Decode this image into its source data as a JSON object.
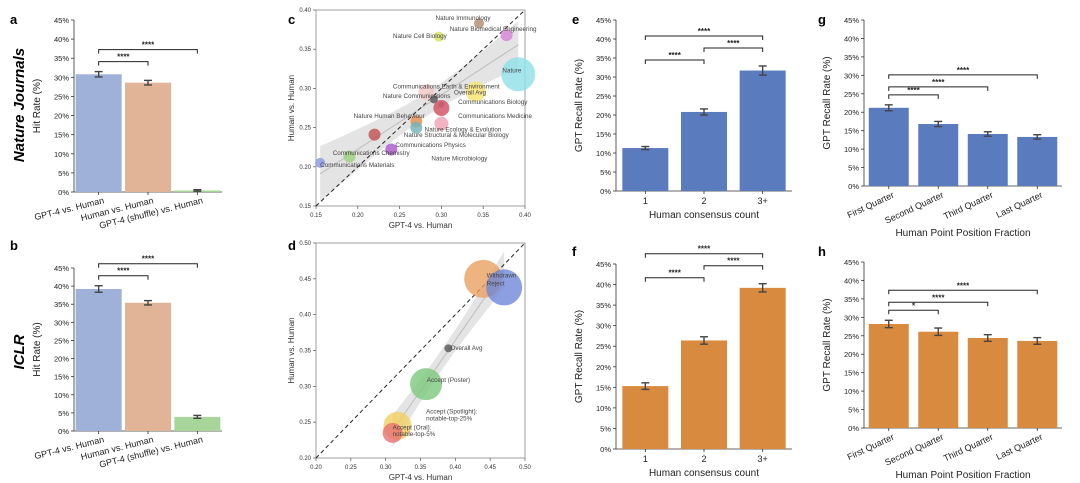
{
  "colors": {
    "blue": "#5b7bbf",
    "bar_blue_light": "#9fb1d8",
    "bar_peach": "#e2b497",
    "bar_green_light": "#a7d59a",
    "orange": "#d88b3f",
    "axis": "#333333",
    "panel_bg": "#eaeaf2",
    "err": "#444444"
  },
  "row_labels": {
    "top": "Nature Journals",
    "bottom": "ICLR"
  },
  "chart_data": [
    {
      "panel": "a",
      "type": "bar",
      "row_label": "Nature Journals",
      "ylabel": "Hit Rate (%)",
      "ylim": [
        0,
        45
      ],
      "yticks": [
        "0%",
        "5%",
        "10%",
        "15%",
        "20%",
        "25%",
        "30%",
        "35%",
        "40%",
        "45%"
      ],
      "categories": [
        "GPT-4 vs. Human",
        "Human vs. Human",
        "GPT-4 (shuffle) vs. Human"
      ],
      "values": [
        30.8,
        28.6,
        0.4
      ],
      "errors": [
        0.7,
        0.6,
        0.2
      ],
      "bar_colors": [
        "#9fb1d8",
        "#e2b497",
        "#a7d59a"
      ],
      "sig": [
        {
          "from": 0,
          "to": 1,
          "label": "****"
        },
        {
          "from": 0,
          "to": 2,
          "label": "****"
        }
      ]
    },
    {
      "panel": "b",
      "type": "bar",
      "row_label": "ICLR",
      "ylabel": "Hit Rate (%)",
      "ylim": [
        0,
        45
      ],
      "yticks": [
        "0%",
        "5%",
        "10%",
        "15%",
        "20%",
        "25%",
        "30%",
        "35%",
        "40%",
        "45%"
      ],
      "categories": [
        "GPT-4 vs. Human",
        "Human vs. Human",
        "GPT-4 (shuffle) vs. Human"
      ],
      "values": [
        39.2,
        35.4,
        3.9
      ],
      "errors": [
        0.9,
        0.6,
        0.4
      ],
      "bar_colors": [
        "#9fb1d8",
        "#e2b497",
        "#a7d59a"
      ],
      "sig": [
        {
          "from": 0,
          "to": 1,
          "label": "****"
        },
        {
          "from": 0,
          "to": 2,
          "label": "****"
        }
      ]
    },
    {
      "panel": "c",
      "type": "scatter",
      "xlabel": "GPT-4 vs. Human",
      "ylabel": "Human vs. Human",
      "xlim": [
        0.15,
        0.4
      ],
      "ylim": [
        0.15,
        0.4
      ],
      "xticks": [
        "0.15",
        "0.20",
        "0.25",
        "0.30",
        "0.35",
        "0.40"
      ],
      "yticks": [
        "0.15",
        "0.20",
        "0.25",
        "0.30",
        "0.35",
        "0.40"
      ],
      "points": [
        {
          "label": "Nature Immunology",
          "x": 0.345,
          "y": 0.383,
          "size": 5,
          "color": "#b08a6e"
        },
        {
          "label": "Nature Biomedical Engineering",
          "x": 0.378,
          "y": 0.368,
          "size": 6,
          "color": "#d782d8"
        },
        {
          "label": "Nature Cell Biology",
          "x": 0.297,
          "y": 0.366,
          "size": 5,
          "color": "#d9e35a"
        },
        {
          "label": "Nature",
          "x": 0.392,
          "y": 0.318,
          "size": 17,
          "color": "#8fe0e8"
        },
        {
          "label": "Communications Earth & Environment",
          "x": 0.282,
          "y": 0.295,
          "size": 8,
          "color": "#f2c7c7"
        },
        {
          "label": "Overall Avg",
          "x": 0.341,
          "y": 0.296,
          "size": 10,
          "color": "#f7e36e"
        },
        {
          "label": "Nature Communications",
          "x": 0.291,
          "y": 0.286,
          "size": 4,
          "color": "#555555"
        },
        {
          "label": "Communications Biology",
          "x": 0.3,
          "y": 0.279,
          "size": 3,
          "color": "#888888"
        },
        {
          "label": "Communications Medicine",
          "x": 0.3,
          "y": 0.275,
          "size": 8,
          "color": "#d04c5e"
        },
        {
          "label": "Nature Human Behaviour",
          "x": 0.27,
          "y": 0.258,
          "size": 6,
          "color": "#e88f4e"
        },
        {
          "label": "Nature Ecology & Evolution",
          "x": 0.27,
          "y": 0.25,
          "size": 6,
          "color": "#6fb3b8"
        },
        {
          "label": "Nature Structural & Molecular Biology",
          "x": 0.22,
          "y": 0.241,
          "size": 6,
          "color": "#c05050"
        },
        {
          "label": "Communications Physics",
          "x": 0.24,
          "y": 0.222,
          "size": 6,
          "color": "#aa55cc"
        },
        {
          "label": "Communications Chemistry",
          "x": 0.19,
          "y": 0.213,
          "size": 6,
          "color": "#9bd07c"
        },
        {
          "label": "Nature Microbiology",
          "x": 0.3,
          "y": 0.255,
          "size": 7,
          "color": "#f0a0b0"
        },
        {
          "label": "Communications Materials",
          "x": 0.155,
          "y": 0.205,
          "size": 5,
          "color": "#8797e0"
        }
      ],
      "text_labels": [
        {
          "text": "Nature Immunology",
          "x": 0.293,
          "y": 0.387
        },
        {
          "text": "Nature Biomedical Engineering",
          "x": 0.31,
          "y": 0.373
        },
        {
          "text": "Nature Cell Biology",
          "x": 0.242,
          "y": 0.364
        },
        {
          "text": "Nature",
          "x": 0.373,
          "y": 0.32
        },
        {
          "text": "Communications Earth & Environment",
          "x": 0.242,
          "y": 0.3
        },
        {
          "text": "Nature Communications",
          "x": 0.23,
          "y": 0.288
        },
        {
          "text": "Overall Avg",
          "x": 0.315,
          "y": 0.292
        },
        {
          "text": "Communications Biology",
          "x": 0.32,
          "y": 0.28
        },
        {
          "text": "Communications Medicine",
          "x": 0.32,
          "y": 0.262
        },
        {
          "text": "Nature Human Behaviour",
          "x": 0.195,
          "y": 0.262
        },
        {
          "text": "Nature Ecology & Evolution",
          "x": 0.28,
          "y": 0.245
        },
        {
          "text": "Nature Structural & Molecular Biology",
          "x": 0.255,
          "y": 0.238
        },
        {
          "text": "Communications Physics",
          "x": 0.245,
          "y": 0.225
        },
        {
          "text": "Communications Chemistry",
          "x": 0.17,
          "y": 0.215
        },
        {
          "text": "Nature Microbiology",
          "x": 0.288,
          "y": 0.208
        },
        {
          "text": "Communications Materials",
          "x": 0.155,
          "y": 0.2
        }
      ]
    },
    {
      "panel": "d",
      "type": "scatter",
      "xlabel": "GPT-4 vs. Human",
      "ylabel": "Human vs. Human",
      "xlim": [
        0.2,
        0.5
      ],
      "ylim": [
        0.2,
        0.5
      ],
      "xticks": [
        "0.20",
        "0.25",
        "0.30",
        "0.35",
        "0.40",
        "0.45",
        "0.50"
      ],
      "yticks": [
        "0.20",
        "0.25",
        "0.30",
        "0.35",
        "0.40",
        "0.45",
        "0.50"
      ],
      "points": [
        {
          "label": "Withdrawn",
          "x": 0.44,
          "y": 0.45,
          "size": 19,
          "color": "#e8a060"
        },
        {
          "label": "Reject",
          "x": 0.47,
          "y": 0.438,
          "size": 18,
          "color": "#6f87d8"
        },
        {
          "label": "Overall Avg",
          "x": 0.39,
          "y": 0.353,
          "size": 4,
          "color": "#555555"
        },
        {
          "label": "Accept (Poster)",
          "x": 0.358,
          "y": 0.303,
          "size": 16,
          "color": "#7cc87c"
        },
        {
          "label": "Accept (Spotlight): notable-top-25%",
          "x": 0.317,
          "y": 0.245,
          "size": 14,
          "color": "#f2d060"
        },
        {
          "label": "Accept (Oral): notable-top-5%",
          "x": 0.31,
          "y": 0.235,
          "size": 10,
          "color": "#e87070"
        }
      ],
      "text_labels": [
        {
          "text": "Withdrawn",
          "x": 0.445,
          "y": 0.452
        },
        {
          "text": "Reject",
          "x": 0.445,
          "y": 0.441
        },
        {
          "text": "Overall Avg",
          "x": 0.393,
          "y": 0.351
        },
        {
          "text": "Accept (Poster)",
          "x": 0.359,
          "y": 0.306
        },
        {
          "text": "Accept (Spotlight):",
          "x": 0.358,
          "y": 0.262
        },
        {
          "text": "notable-top-25%",
          "x": 0.358,
          "y": 0.252
        },
        {
          "text": "Accept (Oral):",
          "x": 0.31,
          "y": 0.24
        },
        {
          "text": "notable-top-5%",
          "x": 0.31,
          "y": 0.231
        }
      ]
    },
    {
      "panel": "e",
      "type": "bar",
      "xlabel": "Human consensus count",
      "ylabel": "GPT Recall Rate (%)",
      "ylim": [
        0,
        45
      ],
      "yticks": [
        "0%",
        "5%",
        "10%",
        "15%",
        "20%",
        "25%",
        "30%",
        "35%",
        "40%",
        "45%"
      ],
      "categories": [
        "1",
        "2",
        "3+"
      ],
      "values": [
        11.3,
        20.8,
        31.7
      ],
      "errors": [
        0.4,
        0.8,
        1.2
      ],
      "bar_colors": [
        "#5b7bbf",
        "#5b7bbf",
        "#5b7bbf"
      ],
      "sig": [
        {
          "from": 0,
          "to": 1,
          "label": "****"
        },
        {
          "from": 1,
          "to": 2,
          "label": "****"
        },
        {
          "from": 0,
          "to": 2,
          "label": "****"
        }
      ]
    },
    {
      "panel": "f",
      "type": "bar",
      "xlabel": "Human consensus count",
      "ylabel": "GPT Recall Rate (%)",
      "ylim": [
        0,
        45
      ],
      "yticks": [
        "0%",
        "5%",
        "10%",
        "15%",
        "20%",
        "25%",
        "30%",
        "35%",
        "40%",
        "45%"
      ],
      "categories": [
        "1",
        "2",
        "3+"
      ],
      "values": [
        15.3,
        26.4,
        39.2
      ],
      "errors": [
        0.8,
        0.9,
        1.0
      ],
      "bar_colors": [
        "#d88b3f",
        "#d88b3f",
        "#d88b3f"
      ],
      "sig": [
        {
          "from": 0,
          "to": 1,
          "label": "****"
        },
        {
          "from": 1,
          "to": 2,
          "label": "****"
        },
        {
          "from": 0,
          "to": 2,
          "label": "****"
        }
      ]
    },
    {
      "panel": "g",
      "type": "bar",
      "xlabel": "Human Point Position Fraction",
      "ylabel": "GPT Recall Rate (%)",
      "ylim": [
        0,
        45
      ],
      "yticks": [
        "0%",
        "5%",
        "10%",
        "15%",
        "20%",
        "25%",
        "30%",
        "35%",
        "40%",
        "45%"
      ],
      "categories": [
        "First Quarter",
        "Second Quarter",
        "Third Quarter",
        "Last Quarter"
      ],
      "values": [
        21.2,
        16.8,
        14.1,
        13.3
      ],
      "errors": [
        0.8,
        0.7,
        0.6,
        0.6
      ],
      "bar_colors": [
        "#5b7bbf",
        "#5b7bbf",
        "#5b7bbf",
        "#5b7bbf"
      ],
      "sig": [
        {
          "from": 0,
          "to": 1,
          "label": "****"
        },
        {
          "from": 0,
          "to": 2,
          "label": "****"
        },
        {
          "from": 0,
          "to": 3,
          "label": "****"
        }
      ]
    },
    {
      "panel": "h",
      "type": "bar",
      "xlabel": "Human Point Position Fraction",
      "ylabel": "GPT Recall Rate (%)",
      "ylim": [
        0,
        45
      ],
      "yticks": [
        "0%",
        "5%",
        "10%",
        "15%",
        "20%",
        "25%",
        "30%",
        "35%",
        "40%",
        "45%"
      ],
      "categories": [
        "First Quarter",
        "Second Quarter",
        "Third Quarter",
        "Last Quarter"
      ],
      "values": [
        28.2,
        26.1,
        24.4,
        23.6
      ],
      "errors": [
        1.0,
        1.0,
        0.9,
        0.9
      ],
      "bar_colors": [
        "#d88b3f",
        "#d88b3f",
        "#d88b3f",
        "#d88b3f"
      ],
      "sig": [
        {
          "from": 0,
          "to": 1,
          "label": "*"
        },
        {
          "from": 0,
          "to": 2,
          "label": "****"
        },
        {
          "from": 0,
          "to": 3,
          "label": "****"
        }
      ]
    }
  ]
}
